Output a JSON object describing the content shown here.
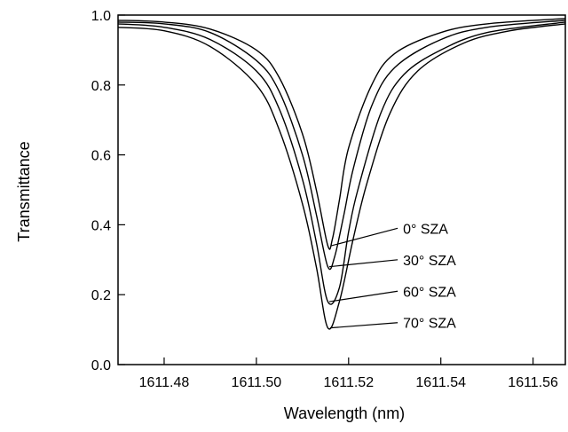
{
  "chart_data": {
    "type": "line",
    "title": "",
    "xlabel": "Wavelength (nm)",
    "ylabel": "Transmittance",
    "xlim": [
      1611.47,
      1611.567
    ],
    "ylim": [
      0.0,
      1.0
    ],
    "x_ticks": [
      1611.48,
      1611.5,
      1611.52,
      1611.54,
      1611.56
    ],
    "x_tick_labels": [
      "1611.48",
      "1611.50",
      "1611.52",
      "1611.54",
      "1611.56"
    ],
    "y_ticks": [
      0.0,
      0.2,
      0.4,
      0.6,
      0.8,
      1.0
    ],
    "y_tick_labels": [
      "0.0",
      "0.2",
      "0.4",
      "0.6",
      "0.8",
      "1.0"
    ],
    "grid": false,
    "legend": "none",
    "line_color": "#000000",
    "series": [
      {
        "x": [
          1611.47,
          1611.48,
          1611.49,
          1611.5,
          1611.505,
          1611.51,
          1611.513,
          1611.5155,
          1611.5165,
          1611.518,
          1611.52,
          1611.525,
          1611.53,
          1611.54,
          1611.55,
          1611.567
        ],
        "y": [
          0.985,
          0.98,
          0.96,
          0.9,
          0.82,
          0.66,
          0.5,
          0.34,
          0.36,
          0.47,
          0.62,
          0.8,
          0.89,
          0.95,
          0.975,
          0.99
        ]
      },
      {
        "x": [
          1611.47,
          1611.48,
          1611.49,
          1611.5,
          1611.505,
          1611.51,
          1611.513,
          1611.5155,
          1611.517,
          1611.519,
          1611.521,
          1611.525,
          1611.53,
          1611.54,
          1611.55,
          1611.567
        ],
        "y": [
          0.98,
          0.975,
          0.95,
          0.87,
          0.78,
          0.6,
          0.43,
          0.28,
          0.31,
          0.43,
          0.56,
          0.74,
          0.85,
          0.93,
          0.965,
          0.985
        ]
      },
      {
        "x": [
          1611.47,
          1611.48,
          1611.49,
          1611.5,
          1611.505,
          1611.51,
          1611.513,
          1611.5155,
          1611.518,
          1611.52,
          1611.522,
          1611.527,
          1611.532,
          1611.54,
          1611.55,
          1611.567
        ],
        "y": [
          0.975,
          0.965,
          0.93,
          0.84,
          0.73,
          0.53,
          0.35,
          0.18,
          0.22,
          0.38,
          0.5,
          0.72,
          0.83,
          0.9,
          0.95,
          0.98
        ]
      },
      {
        "x": [
          1611.47,
          1611.48,
          1611.49,
          1611.5,
          1611.505,
          1611.51,
          1611.513,
          1611.5155,
          1611.518,
          1611.521,
          1611.524,
          1611.529,
          1611.535,
          1611.545,
          1611.555,
          1611.567
        ],
        "y": [
          0.965,
          0.955,
          0.91,
          0.8,
          0.67,
          0.46,
          0.28,
          0.105,
          0.18,
          0.36,
          0.52,
          0.72,
          0.84,
          0.92,
          0.955,
          0.975
        ]
      }
    ],
    "annotations": [
      {
        "text": "0° SZA",
        "point": [
          1611.5162,
          0.34
        ],
        "label_at": [
          1611.5318,
          0.39
        ]
      },
      {
        "text": "30° SZA",
        "point": [
          1611.5158,
          0.28
        ],
        "label_at": [
          1611.5318,
          0.3
        ]
      },
      {
        "text": "60° SZA",
        "point": [
          1611.5158,
          0.18
        ],
        "label_at": [
          1611.5318,
          0.21
        ]
      },
      {
        "text": "70°   SZA",
        "point": [
          1611.516,
          0.105
        ],
        "label_at": [
          1611.5318,
          0.12
        ]
      }
    ]
  }
}
